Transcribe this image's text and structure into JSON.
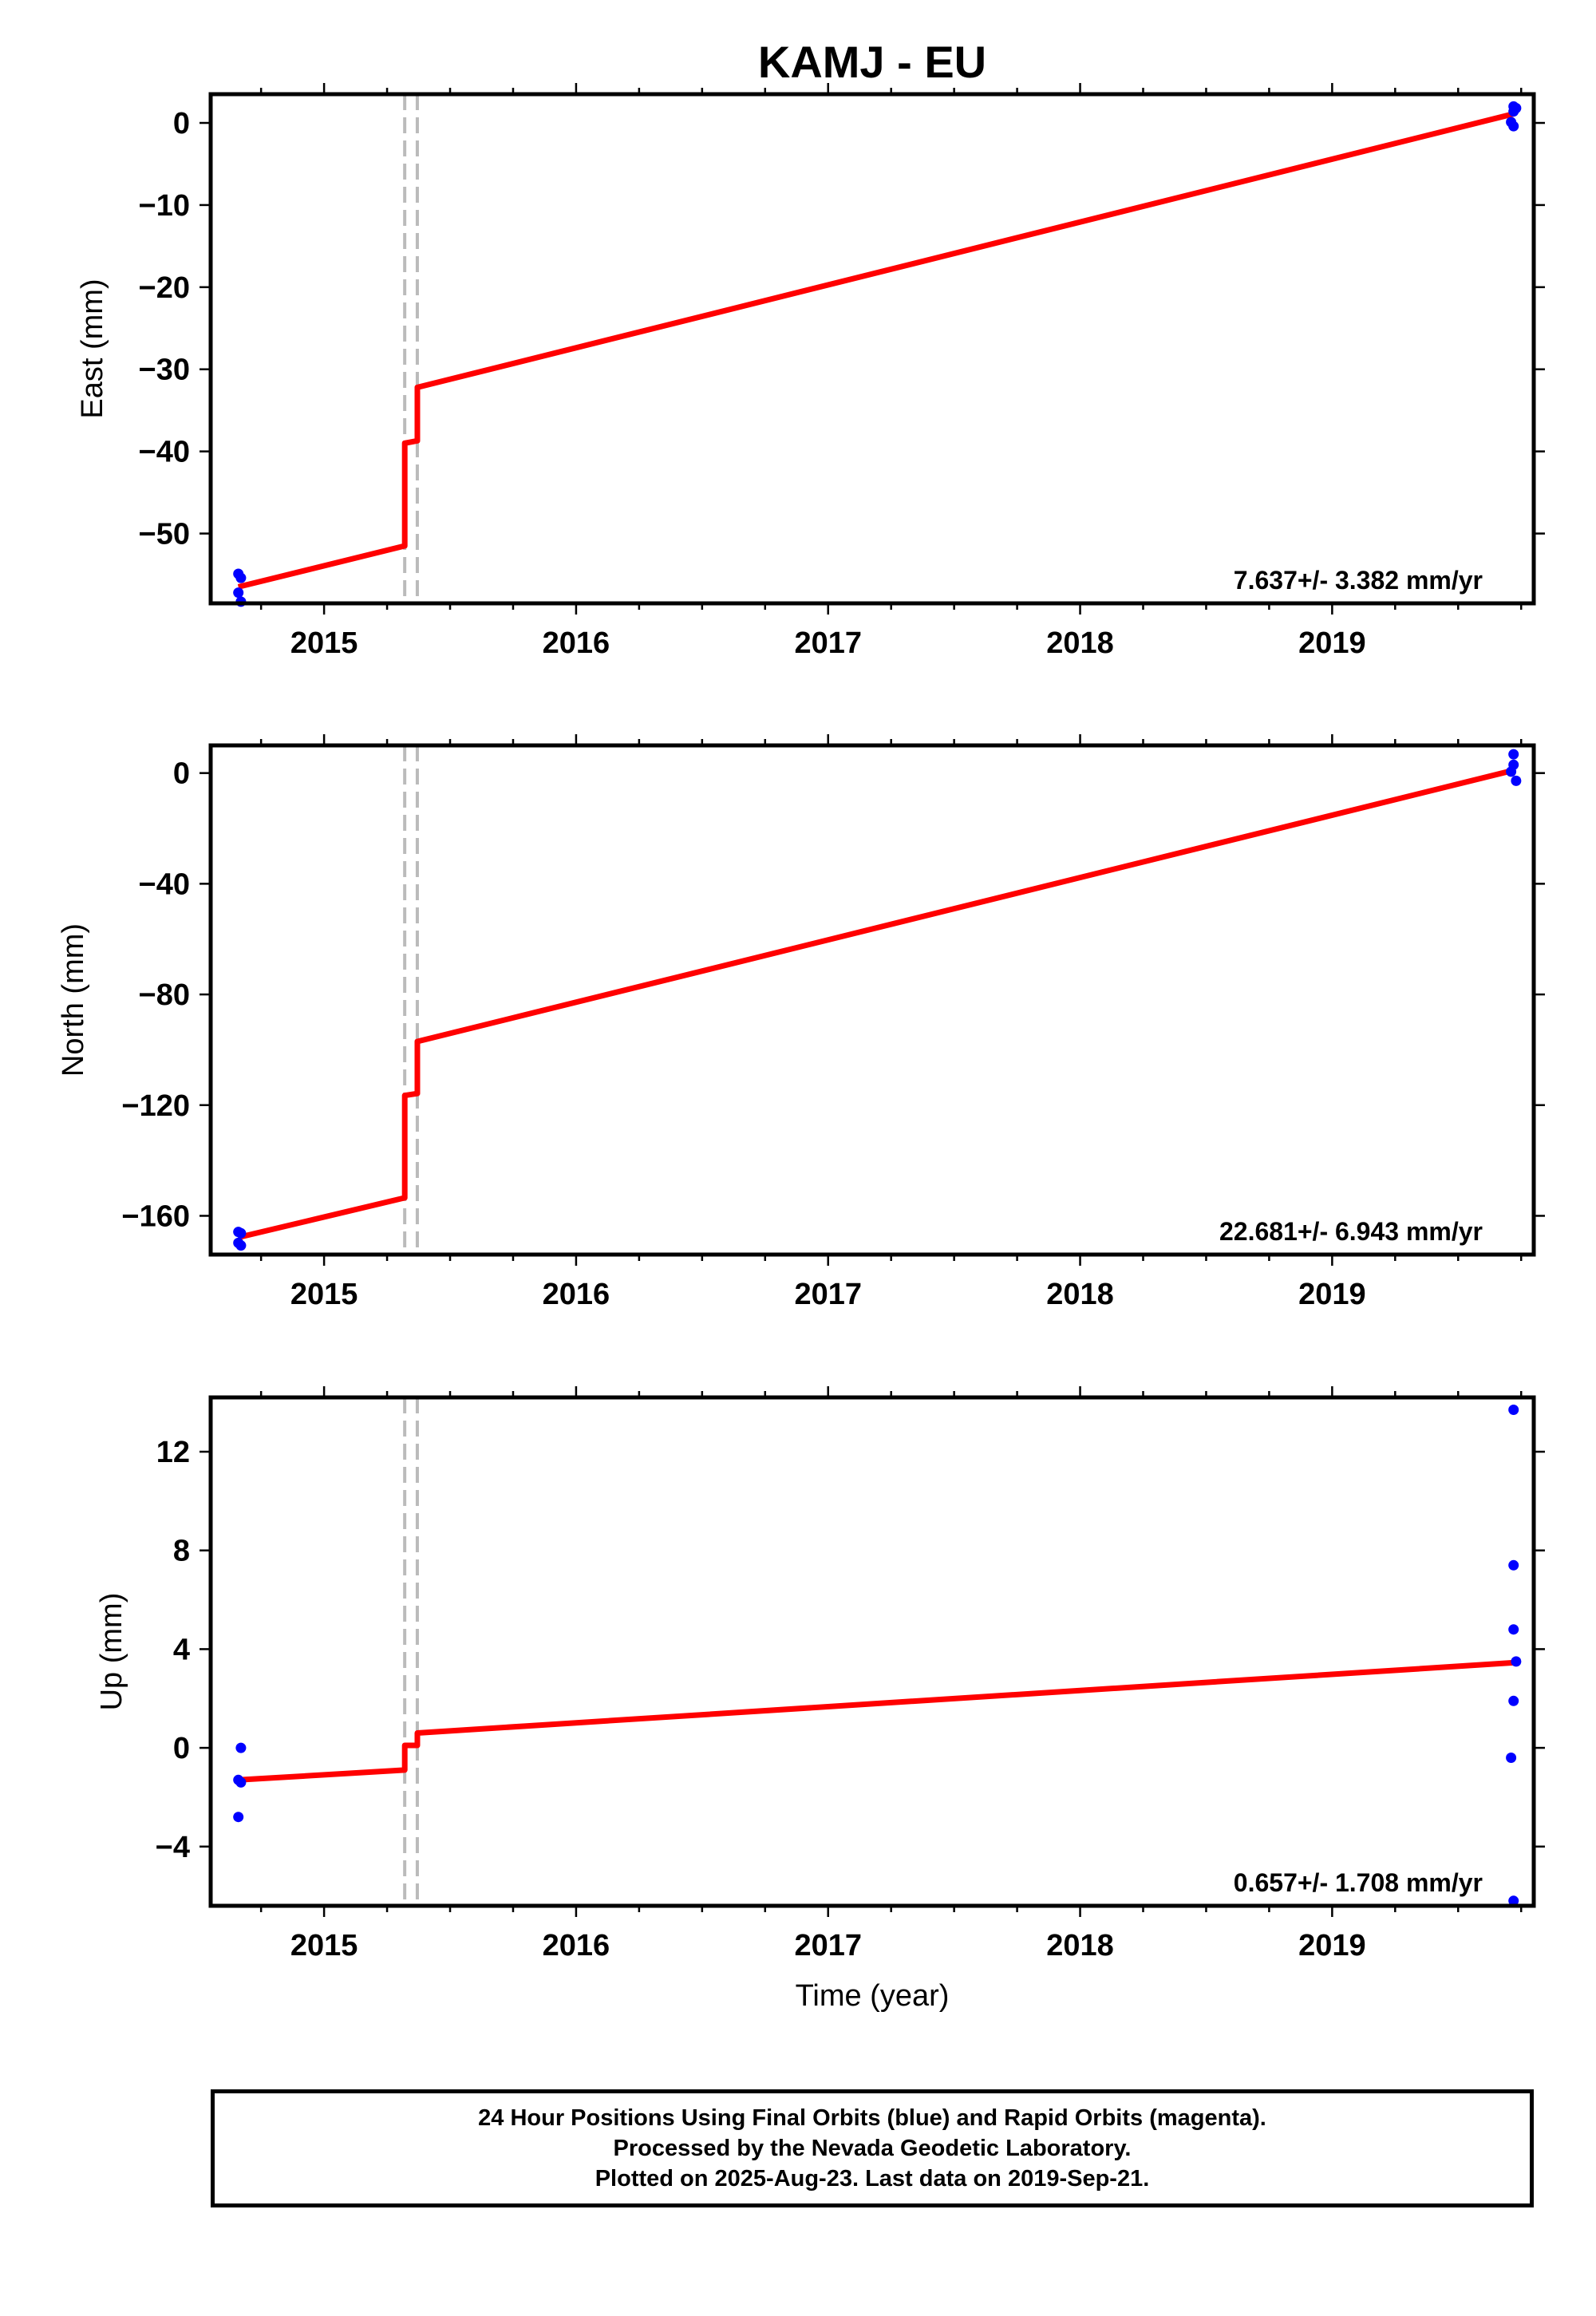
{
  "title": "KAMJ - EU",
  "xlabel": "Time (year)",
  "colors": {
    "model": "#ff0000",
    "final_orbits": "#0000ff",
    "offsets": "#bbbbbb",
    "frame": "#000000"
  },
  "chart_data": [
    {
      "type": "scatter",
      "title": "",
      "ylabel": "East (mm)",
      "xlabel": "",
      "xlim": [
        2014.55,
        2019.8
      ],
      "ylim": [
        -58.5,
        3.5
      ],
      "xticks": [
        2015,
        2016,
        2017,
        2018,
        2019
      ],
      "yticks": [
        0,
        -10,
        -20,
        -30,
        -40,
        -50
      ],
      "rate_label": "7.637+/- 3.382 mm/yr",
      "offsets": [
        2015.32,
        2015.37
      ],
      "series": [
        {
          "name": "final orbits (blue)",
          "points": [
            [
              2014.66,
              -54.9
            ],
            [
              2014.67,
              -55.4
            ],
            [
              2014.66,
              -57.2
            ],
            [
              2014.67,
              -58.3
            ],
            [
              2019.72,
              2.0
            ],
            [
              2019.72,
              1.4
            ],
            [
              2019.71,
              0.1
            ],
            [
              2019.72,
              -0.4
            ],
            [
              2019.73,
              1.8
            ]
          ]
        },
        {
          "name": "model",
          "line": [
            [
              2014.66,
              -56.5
            ],
            [
              2015.32,
              -51.5
            ],
            [
              2015.32,
              -39.0
            ],
            [
              2015.37,
              -38.7
            ],
            [
              2015.37,
              -32.2
            ],
            [
              2019.72,
              1.1
            ]
          ]
        }
      ]
    },
    {
      "type": "scatter",
      "title": "",
      "ylabel": "North (mm)",
      "xlabel": "",
      "xlim": [
        2014.55,
        2019.8
      ],
      "ylim": [
        -174,
        10
      ],
      "xticks": [
        2015,
        2016,
        2017,
        2018,
        2019
      ],
      "yticks": [
        0,
        -40,
        -80,
        -120,
        -160
      ],
      "rate_label": "22.681+/- 6.943 mm/yr",
      "offsets": [
        2015.32,
        2015.37
      ],
      "series": [
        {
          "name": "final orbits (blue)",
          "points": [
            [
              2014.66,
              -165.8
            ],
            [
              2014.67,
              -166.3
            ],
            [
              2014.66,
              -169.8
            ],
            [
              2014.67,
              -170.7
            ],
            [
              2019.72,
              6.8
            ],
            [
              2019.72,
              3.0
            ],
            [
              2019.71,
              0.5
            ],
            [
              2019.73,
              -2.8
            ]
          ]
        },
        {
          "name": "model",
          "line": [
            [
              2014.66,
              -167.8
            ],
            [
              2015.32,
              -153.5
            ],
            [
              2015.32,
              -116.5
            ],
            [
              2015.37,
              -115.8
            ],
            [
              2015.37,
              -97.0
            ],
            [
              2019.72,
              1.0
            ]
          ]
        }
      ]
    },
    {
      "type": "scatter",
      "title": "",
      "ylabel": "Up (mm)",
      "xlabel": "Time (year)",
      "xlim": [
        2014.55,
        2019.8
      ],
      "ylim": [
        -6.4,
        14.2
      ],
      "xticks": [
        2015,
        2016,
        2017,
        2018,
        2019
      ],
      "yticks": [
        12,
        8,
        4,
        0,
        -4
      ],
      "rate_label": "0.657+/- 1.708 mm/yr",
      "offsets": [
        2015.32,
        2015.37
      ],
      "series": [
        {
          "name": "final orbits (blue)",
          "points": [
            [
              2014.67,
              0.0
            ],
            [
              2014.66,
              -1.3
            ],
            [
              2014.67,
              -1.4
            ],
            [
              2014.66,
              -2.8
            ],
            [
              2019.72,
              13.7
            ],
            [
              2019.72,
              7.4
            ],
            [
              2019.72,
              4.8
            ],
            [
              2019.73,
              3.5
            ],
            [
              2019.72,
              1.9
            ],
            [
              2019.71,
              -0.4
            ],
            [
              2019.72,
              -6.2
            ]
          ]
        },
        {
          "name": "model",
          "line": [
            [
              2014.66,
              -1.3
            ],
            [
              2015.32,
              -0.9
            ],
            [
              2015.32,
              0.1
            ],
            [
              2015.37,
              0.1
            ],
            [
              2015.37,
              0.6
            ],
            [
              2019.72,
              3.45
            ]
          ]
        }
      ]
    }
  ],
  "footer": {
    "line1": "24 Hour Positions Using Final Orbits (blue) and Rapid Orbits (magenta).",
    "line2": "Processed by the Nevada Geodetic Laboratory.",
    "line3": "Plotted on 2025-Aug-23. Last data on 2019-Sep-21."
  }
}
